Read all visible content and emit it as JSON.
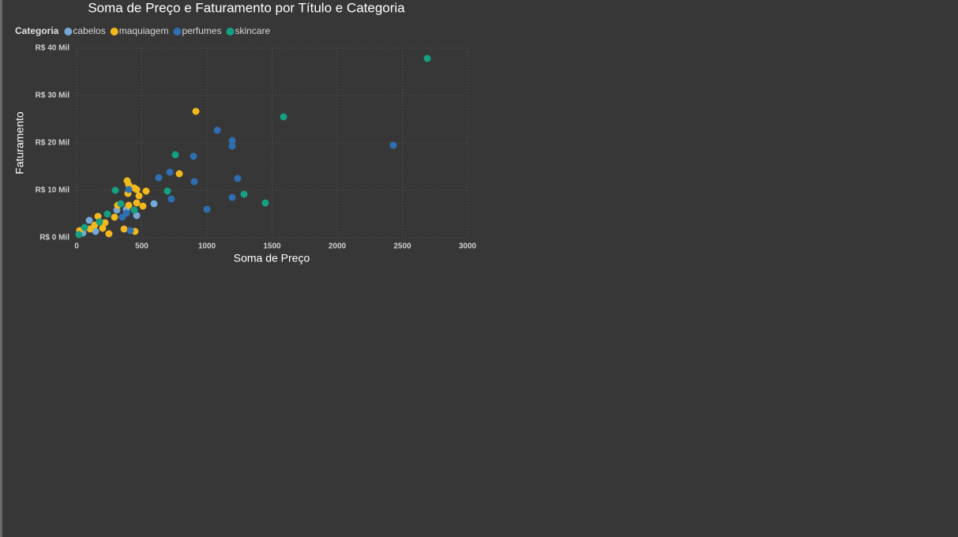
{
  "chart_data": {
    "type": "scatter",
    "title": "Soma de Preço e Faturamento por Título e Categoria",
    "x_label": "Soma de Preço",
    "y_label": "Faturamento",
    "legend_title": "Categoria",
    "legend_position": "top-left",
    "grid": true,
    "xlim": [
      0,
      3000
    ],
    "xticks": [
      0,
      500,
      1000,
      1500,
      2000,
      2500,
      3000
    ],
    "ylim": [
      0,
      40000
    ],
    "yticks": [
      {
        "value": 0,
        "label": "R$ 0 Mil"
      },
      {
        "value": 10000,
        "label": "R$ 10 Mil"
      },
      {
        "value": 20000,
        "label": "R$ 20 Mil"
      },
      {
        "value": 30000,
        "label": "R$ 30 Mil"
      },
      {
        "value": 40000,
        "label": "R$ 40 Mil"
      }
    ],
    "series": [
      {
        "name": "cabelos",
        "color": "#74a9d8",
        "x": [
          594,
          461,
          309,
          97,
          145,
          382,
          48
        ],
        "values": [
          7167,
          4667,
          5833,
          3667,
          1333,
          6000,
          1000
        ]
      },
      {
        "name": "maquiagem",
        "color": "#f2b81c",
        "x": [
          915,
          788,
          533,
          388,
          400,
          442,
          461,
          479,
          509,
          394,
          461,
          400,
          448,
          364,
          248,
          291,
          164,
          139,
          200,
          103,
          24,
          218,
          315
        ],
        "values": [
          26667,
          13500,
          9833,
          12000,
          11167,
          10500,
          10167,
          8833,
          6667,
          9333,
          7333,
          6833,
          1333,
          1833,
          833,
          4333,
          4500,
          2667,
          2000,
          1833,
          1500,
          3167,
          6833
        ]
      },
      {
        "name": "perfumes",
        "color": "#2e6fb3",
        "x": [
          2430,
          1079,
          1194,
          1194,
          897,
          715,
          630,
          1236,
          903,
          727,
          1194,
          1000,
          400,
          412,
          382,
          350
        ],
        "values": [
          19500,
          22667,
          20500,
          19333,
          17167,
          13833,
          12667,
          12500,
          11833,
          8167,
          8500,
          6000,
          10167,
          1500,
          5167,
          4333
        ]
      },
      {
        "name": "skincare",
        "color": "#15a083",
        "x": [
          2691,
          1588,
          758,
          697,
          1285,
          1448,
          297,
          236,
          176,
          61,
          18,
          339,
          442
        ],
        "values": [
          37833,
          25500,
          17500,
          9833,
          9167,
          7333,
          10000,
          5000,
          3333,
          2167,
          667,
          7167,
          5833
        ]
      }
    ]
  }
}
